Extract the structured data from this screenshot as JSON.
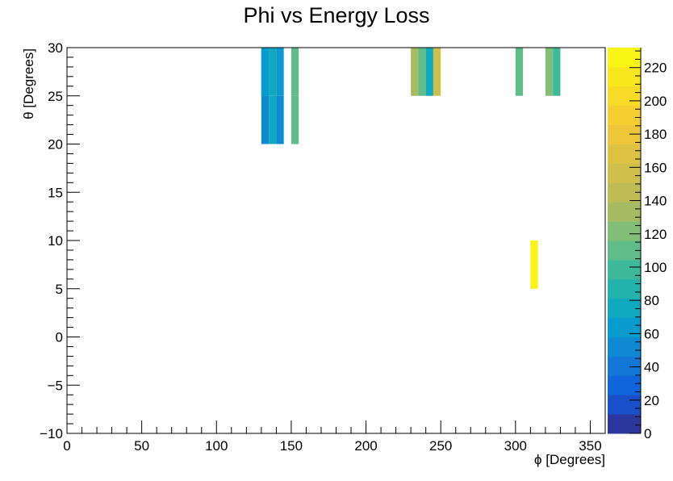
{
  "chart_data": {
    "type": "heatmap",
    "title": "Phi vs Energy Loss",
    "xlabel": "ϕ [Degrees]",
    "ylabel": "θ [Degrees]",
    "xlim": [
      0,
      360
    ],
    "ylim": [
      -10,
      30
    ],
    "x_bin_width": 5,
    "y_bin_width": 5,
    "x_ticks": [
      0,
      50,
      100,
      150,
      200,
      250,
      300,
      350
    ],
    "y_ticks": [
      -10,
      -5,
      0,
      5,
      10,
      15,
      20,
      25,
      30
    ],
    "colorbar": {
      "min": 0,
      "max": 232,
      "ticks": [
        0,
        20,
        40,
        60,
        80,
        100,
        120,
        140,
        160,
        180,
        200,
        220
      ],
      "palette": "kBird"
    },
    "cells": [
      {
        "x": 130,
        "y": 20,
        "value": 55
      },
      {
        "x": 135,
        "y": 20,
        "value": 70
      },
      {
        "x": 140,
        "y": 20,
        "value": 55
      },
      {
        "x": 150,
        "y": 20,
        "value": 105
      },
      {
        "x": 130,
        "y": 25,
        "value": 60
      },
      {
        "x": 135,
        "y": 25,
        "value": 75
      },
      {
        "x": 140,
        "y": 25,
        "value": 60
      },
      {
        "x": 150,
        "y": 25,
        "value": 105
      },
      {
        "x": 130,
        "y": 25,
        "value": 60
      },
      {
        "x": 130,
        "y": 25,
        "value": 60
      },
      {
        "x": 230,
        "y": 25,
        "value": 135
      },
      {
        "x": 235,
        "y": 25,
        "value": 110
      },
      {
        "x": 240,
        "y": 25,
        "value": 70
      },
      {
        "x": 245,
        "y": 25,
        "value": 155
      },
      {
        "x": 300,
        "y": 25,
        "value": 105
      },
      {
        "x": 320,
        "y": 25,
        "value": 125
      },
      {
        "x": 325,
        "y": 25,
        "value": 95
      },
      {
        "x": 310,
        "y": 5,
        "value": 230
      }
    ]
  }
}
